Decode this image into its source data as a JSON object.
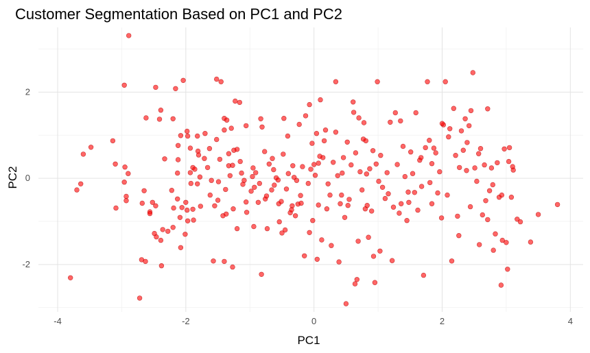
{
  "chart_data": {
    "type": "scatter",
    "title": "Customer Segmentation Based on PC1 and PC2",
    "xlabel": "PC1",
    "ylabel": "PC2",
    "xlim": [
      -4.3,
      4.2
    ],
    "ylim": [
      -3.1,
      3.5
    ],
    "xticks": [
      -4,
      -2,
      0,
      2,
      4
    ],
    "xtick_labels": [
      "-4",
      "-2",
      "0",
      "2",
      "4"
    ],
    "yticks": [
      -2,
      0,
      2
    ],
    "ytick_labels": [
      "-2",
      "0",
      "2"
    ],
    "grid": true,
    "legend": "none",
    "point_color": "#ff0000",
    "point_alpha": 0.6,
    "points": [
      [
        -2.89,
        3.31
      ],
      [
        -3.8,
        -2.31
      ],
      [
        -2.72,
        -2.78
      ],
      [
        -3.7,
        -0.27
      ],
      [
        -3.64,
        -0.13
      ],
      [
        -3.6,
        0.56
      ],
      [
        -3.48,
        0.72
      ],
      [
        -3.14,
        0.87
      ],
      [
        -3.1,
        0.33
      ],
      [
        -3.09,
        -0.69
      ],
      [
        -2.96,
        2.16
      ],
      [
        -2.95,
        0.26
      ],
      [
        -2.93,
        -0.42
      ],
      [
        -2.93,
        -0.52
      ],
      [
        -2.9,
        0.11
      ],
      [
        -2.96,
        -0.09
      ],
      [
        -2.65,
        -0.29
      ],
      [
        -2.63,
        -1.93
      ],
      [
        -2.69,
        -1.89
      ],
      [
        -2.62,
        1.4
      ],
      [
        -2.56,
        -0.78
      ],
      [
        -2.52,
        -0.56
      ],
      [
        -2.47,
        -0.64
      ],
      [
        -2.49,
        -1.28
      ],
      [
        -2.46,
        -1.36
      ],
      [
        -2.39,
        -1.44
      ],
      [
        -2.47,
        2.11
      ],
      [
        -2.41,
        1.37
      ],
      [
        -2.39,
        1.58
      ],
      [
        -2.38,
        -2.03
      ],
      [
        -2.33,
        0.45
      ],
      [
        -2.22,
        -0.28
      ],
      [
        -2.19,
        -0.69
      ],
      [
        -2.2,
        -1.14
      ],
      [
        -2.2,
        1.38
      ],
      [
        -2.16,
        2.08
      ],
      [
        -2.13,
        -0.48
      ],
      [
        -2.13,
        0.12
      ],
      [
        -2.12,
        0.76
      ],
      [
        -2.12,
        0.43
      ],
      [
        -2.09,
        -0.91
      ],
      [
        -2.08,
        -1.61
      ],
      [
        -2.06,
        -0.68
      ],
      [
        -2.04,
        2.27
      ],
      [
        -2.01,
        -1.3
      ],
      [
        -2.0,
        -0.56
      ],
      [
        -1.98,
        1.09
      ],
      [
        -1.97,
        0.98
      ],
      [
        -1.97,
        -0.99
      ],
      [
        -1.93,
        0.7
      ],
      [
        -1.93,
        0.13
      ],
      [
        -1.92,
        -0.12
      ],
      [
        -1.89,
        -0.72
      ],
      [
        -1.89,
        0.25
      ],
      [
        -1.86,
        0.21
      ],
      [
        -1.88,
        -0.97
      ],
      [
        -1.82,
        -0.13
      ],
      [
        -1.81,
        0.63
      ],
      [
        -1.8,
        0.54
      ],
      [
        -1.78,
        0.03
      ],
      [
        -1.77,
        -0.65
      ],
      [
        -1.7,
        1.04
      ],
      [
        -1.66,
        0.25
      ],
      [
        -1.63,
        0.69
      ],
      [
        -1.62,
        -0.39
      ],
      [
        -1.6,
        -0.05
      ],
      [
        -1.55,
        -0.64
      ],
      [
        -1.52,
        2.3
      ],
      [
        -1.5,
        -0.51
      ],
      [
        -1.47,
        0.44
      ],
      [
        -1.45,
        2.24
      ],
      [
        -1.42,
        -0.87
      ],
      [
        -1.4,
        1.39
      ],
      [
        -1.4,
        1.12
      ],
      [
        -1.38,
        -0.26
      ],
      [
        -1.37,
        -0.83
      ],
      [
        -1.36,
        1.35
      ],
      [
        -1.33,
        0.57
      ],
      [
        -1.33,
        0.29
      ],
      [
        -1.31,
        0.06
      ],
      [
        -1.29,
        1.16
      ],
      [
        -1.27,
        0.3
      ],
      [
        -1.26,
        -0.71
      ],
      [
        -1.25,
        0.65
      ],
      [
        -1.23,
        1.79
      ],
      [
        -1.2,
        -1.17
      ],
      [
        -1.16,
        1.76
      ],
      [
        -1.15,
        0.39
      ],
      [
        -1.13,
        0.12
      ],
      [
        -1.11,
        -0.14
      ],
      [
        -1.09,
        -0.05
      ],
      [
        -1.06,
        -0.55
      ],
      [
        -1.05,
        -0.79
      ],
      [
        -0.98,
        -0.3
      ],
      [
        -0.95,
        0.24
      ],
      [
        -0.94,
        -1.12
      ],
      [
        -0.91,
        0.13
      ],
      [
        -0.87,
        -0.56
      ],
      [
        -0.85,
        -0.12
      ],
      [
        -0.83,
        1.38
      ],
      [
        -0.81,
        1.19
      ],
      [
        -0.77,
        0.62
      ],
      [
        -0.76,
        -0.48
      ],
      [
        -0.73,
        -1.17
      ],
      [
        -0.7,
        0.33
      ],
      [
        -0.65,
        0.46
      ],
      [
        -0.63,
        0.2
      ],
      [
        -0.62,
        -0.16
      ],
      [
        -0.59,
        0.01
      ],
      [
        -0.56,
        -0.04
      ],
      [
        -0.55,
        -0.59
      ],
      [
        -0.54,
        -1.01
      ],
      [
        -0.51,
        -0.54
      ],
      [
        -0.5,
        -1.27
      ],
      [
        -0.48,
        0.56
      ],
      [
        -0.47,
        1.39
      ],
      [
        -0.45,
        -1.2
      ],
      [
        -0.43,
        -0.25
      ],
      [
        -0.4,
        0.11
      ],
      [
        -0.37,
        -0.8
      ],
      [
        -0.34,
        -0.64
      ],
      [
        -0.33,
        0.29
      ],
      [
        -0.31,
        0.02
      ],
      [
        -0.29,
        -0.87
      ],
      [
        -0.27,
        -0.05
      ],
      [
        -0.25,
        -0.6
      ],
      [
        -0.23,
        1.25
      ],
      [
        -0.21,
        -0.4
      ],
      [
        -0.18,
        0.27
      ],
      [
        -0.15,
        -1.8
      ],
      [
        -0.13,
        1.45
      ],
      [
        -0.09,
        -0.12
      ],
      [
        -0.07,
        1.71
      ],
      [
        -0.05,
        0.21
      ],
      [
        -0.03,
        0.81
      ],
      [
        -0.02,
        -0.98
      ],
      [
        0.0,
        0.32
      ],
      [
        0.02,
        0.07
      ],
      [
        0.04,
        1.04
      ],
      [
        0.05,
        -1.88
      ],
      [
        0.07,
        -0.62
      ],
      [
        0.07,
        0.35
      ],
      [
        0.1,
        1.82
      ],
      [
        0.12,
        -1.43
      ],
      [
        0.14,
        0.48
      ],
      [
        0.16,
        0.87
      ],
      [
        0.18,
        1.12
      ],
      [
        0.2,
        -0.71
      ],
      [
        0.22,
        -0.13
      ],
      [
        0.25,
        -0.39
      ],
      [
        0.27,
        -1.56
      ],
      [
        0.3,
        0.37
      ],
      [
        0.34,
        2.24
      ],
      [
        0.37,
        0.06
      ],
      [
        0.39,
        -1.94
      ],
      [
        0.41,
        -0.59
      ],
      [
        0.43,
        -0.39
      ],
      [
        0.46,
        0.48
      ],
      [
        0.48,
        -0.91
      ],
      [
        0.5,
        -2.91
      ],
      [
        0.52,
        0.84
      ],
      [
        0.55,
        -0.49
      ],
      [
        0.58,
        0.31
      ],
      [
        0.61,
        1.77
      ],
      [
        0.62,
        1.53
      ],
      [
        0.64,
        -2.45
      ],
      [
        0.65,
        0.59
      ],
      [
        0.67,
        -2.35
      ],
      [
        0.7,
        1.4
      ],
      [
        0.72,
        0.15
      ],
      [
        0.75,
        -0.27
      ],
      [
        0.77,
        0.91
      ],
      [
        0.8,
        -0.71
      ],
      [
        0.81,
        0.87
      ],
      [
        0.83,
        -0.63
      ],
      [
        0.85,
        -1.37
      ],
      [
        0.87,
        0.22
      ],
      [
        0.9,
        -0.76
      ],
      [
        0.92,
        0.64
      ],
      [
        0.93,
        -1.81
      ],
      [
        0.95,
        -2.42
      ],
      [
        0.97,
        0.33
      ],
      [
        0.99,
        2.24
      ],
      [
        1.01,
        -0.07
      ],
      [
        1.04,
        0.53
      ],
      [
        1.07,
        -0.21
      ],
      [
        1.11,
        -0.47
      ],
      [
        1.14,
        0.13
      ],
      [
        1.19,
        1.3
      ],
      [
        1.22,
        -1.91
      ],
      [
        1.27,
        1.52
      ],
      [
        1.3,
        0.32
      ],
      [
        1.33,
        -0.81
      ],
      [
        1.36,
        -0.59
      ],
      [
        1.39,
        0.74
      ],
      [
        1.42,
        0.04
      ],
      [
        1.45,
        -0.98
      ],
      [
        1.48,
        -0.56
      ],
      [
        1.51,
        0.61
      ],
      [
        1.54,
        0.11
      ],
      [
        1.57,
        -0.33
      ],
      [
        1.59,
        1.52
      ],
      [
        1.62,
        -0.74
      ],
      [
        1.65,
        0.42
      ],
      [
        1.68,
        -0.19
      ],
      [
        1.71,
        -2.25
      ],
      [
        1.74,
        0.71
      ],
      [
        1.77,
        2.24
      ],
      [
        1.8,
        0.88
      ],
      [
        1.84,
        0.34
      ],
      [
        1.87,
        0.7
      ],
      [
        1.9,
        0.59
      ],
      [
        1.93,
        -0.34
      ],
      [
        1.96,
        0.15
      ],
      [
        1.99,
        -0.92
      ],
      [
        2.02,
        1.24
      ],
      [
        2.05,
        2.24
      ],
      [
        2.08,
        -0.39
      ],
      [
        2.1,
        0.96
      ],
      [
        2.12,
        1.15
      ],
      [
        2.15,
        -1.92
      ],
      [
        2.18,
        1.62
      ],
      [
        2.21,
        0.53
      ],
      [
        2.24,
        -0.88
      ],
      [
        2.27,
        0.25
      ],
      [
        2.3,
        1.1
      ],
      [
        2.33,
        0.65
      ],
      [
        2.36,
        1.38
      ],
      [
        2.39,
        0.83
      ],
      [
        2.42,
        1.22
      ],
      [
        2.45,
        1.57
      ],
      [
        2.48,
        2.45
      ],
      [
        2.51,
        0.24
      ],
      [
        2.54,
        -0.07
      ],
      [
        2.57,
        0.57
      ],
      [
        2.6,
        0.69
      ],
      [
        2.63,
        -0.85
      ],
      [
        2.66,
        0.31
      ],
      [
        2.68,
        -0.52
      ],
      [
        2.71,
        1.61
      ],
      [
        2.74,
        -0.29
      ],
      [
        2.77,
        0.24
      ],
      [
        2.8,
        -1.67
      ],
      [
        2.83,
        -1.29
      ],
      [
        2.86,
        0.36
      ],
      [
        2.89,
        -0.44
      ],
      [
        2.92,
        -2.48
      ],
      [
        2.94,
        -1.44
      ],
      [
        2.97,
        0.68
      ],
      [
        3.0,
        -1.49
      ],
      [
        3.02,
        -2.11
      ],
      [
        3.05,
        0.71
      ],
      [
        3.08,
        -0.44
      ],
      [
        3.11,
        0.19
      ],
      [
        3.17,
        -0.95
      ],
      [
        3.22,
        -1.01
      ],
      [
        3.38,
        -1.48
      ],
      [
        3.5,
        -0.84
      ],
      [
        3.8,
        -0.61
      ],
      [
        -2.68,
        -0.58
      ],
      [
        -2.56,
        -0.82
      ],
      [
        -2.36,
        -1.19
      ],
      [
        -2.28,
        -1.23
      ],
      [
        -1.98,
        -0.74
      ],
      [
        -1.71,
        0.46
      ],
      [
        -1.57,
        -1.92
      ],
      [
        -1.49,
        -0.08
      ],
      [
        -1.4,
        -1.93
      ],
      [
        -1.27,
        -2.06
      ],
      [
        -1.06,
        1.22
      ],
      [
        -0.93,
        -0.21
      ],
      [
        -0.82,
        -2.23
      ],
      [
        -0.74,
        -0.41
      ],
      [
        -0.66,
        -0.27
      ],
      [
        -0.35,
        -0.73
      ],
      [
        -0.2,
        -0.58
      ],
      [
        -0.07,
        -1.26
      ],
      [
        0.34,
        1.07
      ],
      [
        0.53,
        -0.63
      ],
      [
        0.69,
        -1.46
      ],
      [
        0.82,
        0.1
      ],
      [
        1.03,
        -1.69
      ],
      [
        1.16,
        -0.36
      ],
      [
        1.35,
        1.33
      ],
      [
        1.47,
        -0.32
      ],
      [
        1.67,
        0.48
      ],
      [
        1.84,
        -0.59
      ],
      [
        2.0,
        1.27
      ],
      [
        2.26,
        -1.33
      ],
      [
        2.44,
        -0.66
      ],
      [
        2.58,
        -1.54
      ],
      [
        2.79,
        -0.15
      ],
      [
        2.93,
        -0.39
      ],
      [
        3.04,
        0.39
      ],
      [
        -2.08,
        0.99
      ],
      [
        -1.82,
        0.98
      ],
      [
        -1.52,
        0.9
      ],
      [
        -1.2,
        0.67
      ],
      [
        -0.96,
        0.04
      ],
      [
        -0.41,
        0.98
      ],
      [
        0.09,
        0.51
      ],
      [
        0.44,
        0.12
      ],
      [
        0.78,
        1.29
      ],
      [
        1.24,
        -0.67
      ],
      [
        1.81,
        -0.1
      ],
      [
        2.38,
        0.18
      ],
      [
        2.71,
        -0.96
      ],
      [
        3.1,
        0.27
      ]
    ]
  }
}
